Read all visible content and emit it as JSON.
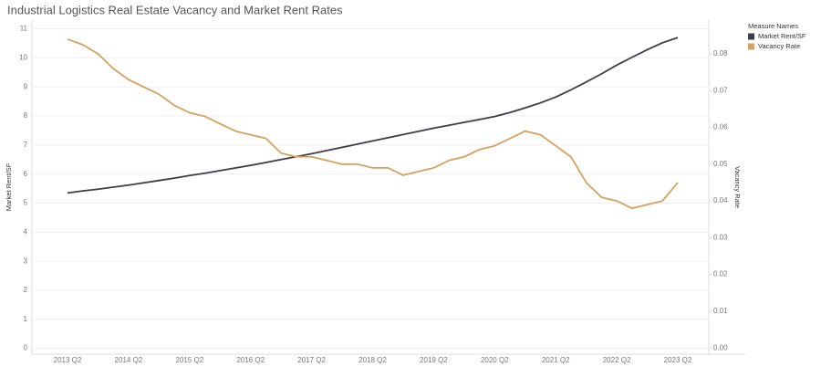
{
  "chart_data": {
    "type": "line",
    "title": "Industrial Logistics Real Estate Vacancy and Market Rent Rates",
    "legend_title": "Measure Names",
    "y_label": "Market Rent/SF",
    "y2_label": "Vacancy Rate",
    "categories": [
      "2013 Q2",
      null,
      null,
      null,
      "2014 Q2",
      null,
      null,
      null,
      "2015 Q2",
      null,
      null,
      null,
      "2016 Q2",
      null,
      null,
      null,
      "2017 Q2",
      null,
      null,
      null,
      "2018 Q2",
      null,
      null,
      null,
      "2019 Q2",
      null,
      null,
      null,
      "2020 Q2",
      null,
      null,
      null,
      "2021 Q2",
      null,
      null,
      null,
      "2022 Q2",
      null,
      null,
      null,
      "2023 Q2"
    ],
    "series": [
      {
        "name": "Market Rent/SF",
        "color": "#3d3d45",
        "values": [
          5.35,
          5.42,
          5.48,
          5.55,
          5.62,
          5.7,
          5.78,
          5.86,
          5.95,
          6.03,
          6.12,
          6.21,
          6.3,
          6.4,
          6.5,
          6.6,
          6.7,
          6.81,
          6.92,
          7.03,
          7.14,
          7.25,
          7.36,
          7.47,
          7.58,
          7.68,
          7.78,
          7.88,
          7.98,
          8.12,
          8.28,
          8.45,
          8.65,
          8.9,
          9.17,
          9.45,
          9.75,
          10.02,
          10.28,
          10.52,
          10.7
        ]
      },
      {
        "name": "Vacancy Rate",
        "color": "#d4a15f",
        "axis": "y2",
        "values": [
          0.084,
          0.0825,
          0.08,
          0.076,
          0.073,
          0.071,
          0.069,
          0.066,
          0.064,
          0.063,
          0.061,
          0.059,
          0.058,
          0.057,
          0.053,
          0.052,
          0.052,
          0.051,
          0.05,
          0.05,
          0.049,
          0.049,
          0.047,
          0.048,
          0.049,
          0.051,
          0.052,
          0.054,
          0.055,
          0.057,
          0.059,
          0.058,
          0.055,
          0.052,
          0.045,
          0.041,
          0.04,
          0.038,
          0.039,
          0.04,
          0.045
        ]
      }
    ],
    "ylim": [
      -0.2,
      11.3
    ],
    "yticks": [
      0,
      1,
      2,
      3,
      4,
      5,
      6,
      7,
      8,
      9,
      10,
      11
    ],
    "y2lim": [
      -0.0017,
      0.0892
    ],
    "y2ticks": [
      {
        "value": 0,
        "label": "0.00"
      },
      0.01,
      0.02,
      0.03,
      0.04,
      0.05,
      0.06,
      0.07,
      0.08
    ],
    "grid": true
  }
}
